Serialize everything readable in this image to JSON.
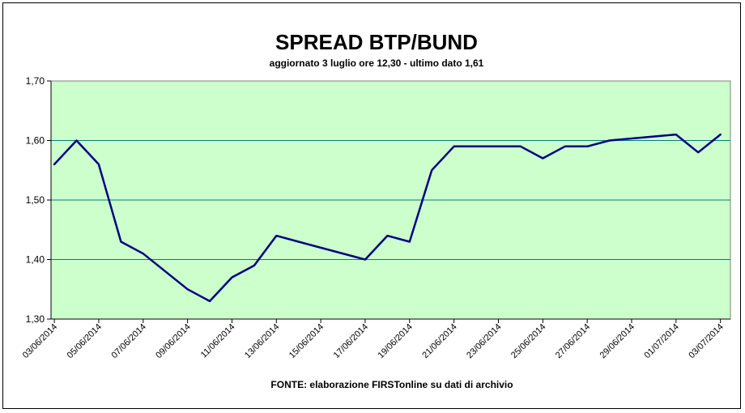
{
  "chart_data": {
    "type": "line",
    "title": "SPREAD BTP/BUND",
    "subtitle": "aggiornato 3 luglio ore 12,30 - ultimo dato 1,61",
    "source": "FONTE: elaborazione FIRSTonline su dati di archivio",
    "ylim": [
      1.3,
      1.7
    ],
    "yticks": [
      "1,30",
      "1,40",
      "1,50",
      "1,60",
      "1,70"
    ],
    "xticks": [
      "03/06/2014",
      "05/06/2014",
      "07/06/2014",
      "09/06/2014",
      "11/06/2014",
      "13/06/2014",
      "15/06/2014",
      "17/06/2014",
      "19/06/2014",
      "21/06/2014",
      "23/06/2014",
      "25/06/2014",
      "27/06/2014",
      "29/06/2014",
      "01/07/2014",
      "03/07/2014"
    ],
    "x_start": "2014-06-03",
    "x_end": "2014-07-03",
    "grid": true,
    "plot_background": "#CCFFCC",
    "line_color": "#000080",
    "gridline_color": "#008080",
    "series": [
      {
        "x": [
          "2014-06-03",
          "2014-06-04",
          "2014-06-05",
          "2014-06-06",
          "2014-06-07",
          "2014-06-09",
          "2014-06-10",
          "2014-06-11",
          "2014-06-12",
          "2014-06-13",
          "2014-06-14",
          "2014-06-17",
          "2014-06-18",
          "2014-06-19",
          "2014-06-20",
          "2014-06-21",
          "2014-06-24",
          "2014-06-25",
          "2014-06-26",
          "2014-06-27",
          "2014-06-28",
          "2014-07-01",
          "2014-07-02",
          "2014-07-03"
        ],
        "values": [
          1.56,
          1.6,
          1.56,
          1.43,
          1.41,
          1.35,
          1.33,
          1.37,
          1.39,
          1.44,
          1.43,
          1.4,
          1.44,
          1.43,
          1.55,
          1.59,
          1.59,
          1.57,
          1.59,
          1.59,
          1.6,
          1.61,
          1.58,
          1.61
        ]
      }
    ]
  }
}
